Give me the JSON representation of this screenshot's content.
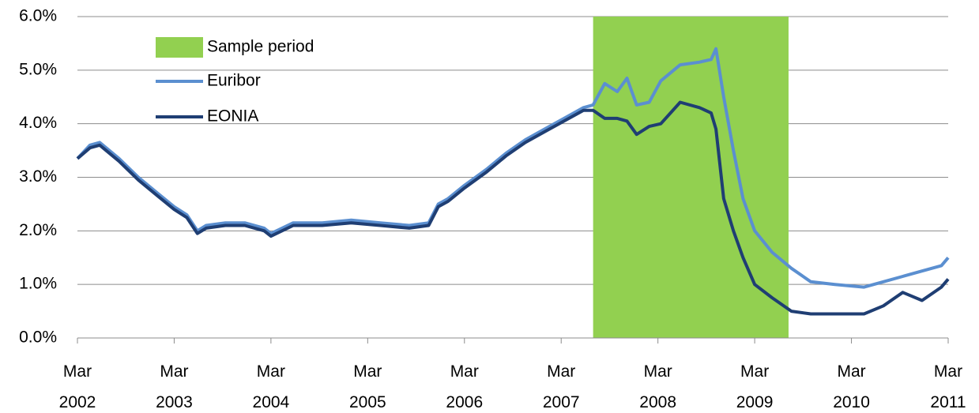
{
  "chart_data": {
    "type": "line",
    "xlim": [
      2002.17,
      2011.17
    ],
    "xticks": [
      {
        "value": 2002.17,
        "label": "Mar 2002"
      },
      {
        "value": 2003.17,
        "label": "Mar 2003"
      },
      {
        "value": 2004.17,
        "label": "Mar 2004"
      },
      {
        "value": 2005.17,
        "label": "Mar 2005"
      },
      {
        "value": 2006.17,
        "label": "Mar 2006"
      },
      {
        "value": 2007.17,
        "label": "Mar 2007"
      },
      {
        "value": 2008.17,
        "label": "Mar 2008"
      },
      {
        "value": 2009.17,
        "label": "Mar 2009"
      },
      {
        "value": 2010.17,
        "label": "Mar 2010"
      },
      {
        "value": 2011.17,
        "label": "Mar 2011"
      }
    ],
    "ylim": [
      0,
      6
    ],
    "yticks": [
      {
        "value": 0,
        "label": "0.0%"
      },
      {
        "value": 1,
        "label": "1.0%"
      },
      {
        "value": 2,
        "label": "2.0%"
      },
      {
        "value": 3,
        "label": "3.0%"
      },
      {
        "value": 4,
        "label": "4.0%"
      },
      {
        "value": 5,
        "label": "5.0%"
      },
      {
        "value": 6,
        "label": "6.0%"
      }
    ],
    "grid": true,
    "legend": "top-left",
    "shaded_periods": [
      {
        "name": "Sample period",
        "color": "#92d050",
        "x": [
          2007.5,
          2009.52
        ]
      }
    ],
    "x": [
      2002.17,
      2002.3,
      2002.4,
      2002.6,
      2002.8,
      2003.0,
      2003.17,
      2003.3,
      2003.41,
      2003.5,
      2003.7,
      2003.9,
      2004.1,
      2004.17,
      2004.4,
      2004.7,
      2005.0,
      2005.3,
      2005.6,
      2005.8,
      2005.9,
      2006.0,
      2006.17,
      2006.4,
      2006.6,
      2006.8,
      2007.0,
      2007.2,
      2007.4,
      2007.5,
      2007.62,
      2007.75,
      2007.85,
      2007.95,
      2008.08,
      2008.2,
      2008.4,
      2008.6,
      2008.72,
      2008.77,
      2008.85,
      2008.95,
      2009.05,
      2009.17,
      2009.35,
      2009.55,
      2009.75,
      2010.0,
      2010.3,
      2010.5,
      2010.7,
      2010.9,
      2011.1,
      2011.17
    ],
    "series": [
      {
        "name": "Euribor",
        "color": "#5b8fd0",
        "values": [
          3.35,
          3.6,
          3.65,
          3.35,
          3.0,
          2.7,
          2.45,
          2.3,
          2.0,
          2.1,
          2.15,
          2.15,
          2.05,
          1.95,
          2.15,
          2.15,
          2.2,
          2.15,
          2.1,
          2.15,
          2.5,
          2.6,
          2.85,
          3.15,
          3.45,
          3.7,
          3.9,
          4.1,
          4.3,
          4.35,
          4.75,
          4.6,
          4.85,
          4.35,
          4.4,
          4.8,
          5.1,
          5.15,
          5.2,
          5.4,
          4.5,
          3.5,
          2.6,
          2.0,
          1.6,
          1.3,
          1.05,
          1.0,
          0.95,
          1.05,
          1.15,
          1.25,
          1.35,
          1.5
        ]
      },
      {
        "name": "EONIA",
        "color": "#1f3e73",
        "values": [
          3.35,
          3.55,
          3.6,
          3.3,
          2.95,
          2.65,
          2.4,
          2.25,
          1.95,
          2.05,
          2.1,
          2.1,
          2.0,
          1.9,
          2.1,
          2.1,
          2.15,
          2.1,
          2.05,
          2.1,
          2.45,
          2.55,
          2.8,
          3.1,
          3.4,
          3.65,
          3.85,
          4.05,
          4.25,
          4.25,
          4.1,
          4.1,
          4.05,
          3.8,
          3.95,
          4.0,
          4.4,
          4.3,
          4.2,
          3.9,
          2.6,
          2.0,
          1.5,
          1.0,
          0.75,
          0.5,
          0.45,
          0.45,
          0.45,
          0.6,
          0.85,
          0.7,
          0.95,
          1.1
        ]
      }
    ]
  }
}
